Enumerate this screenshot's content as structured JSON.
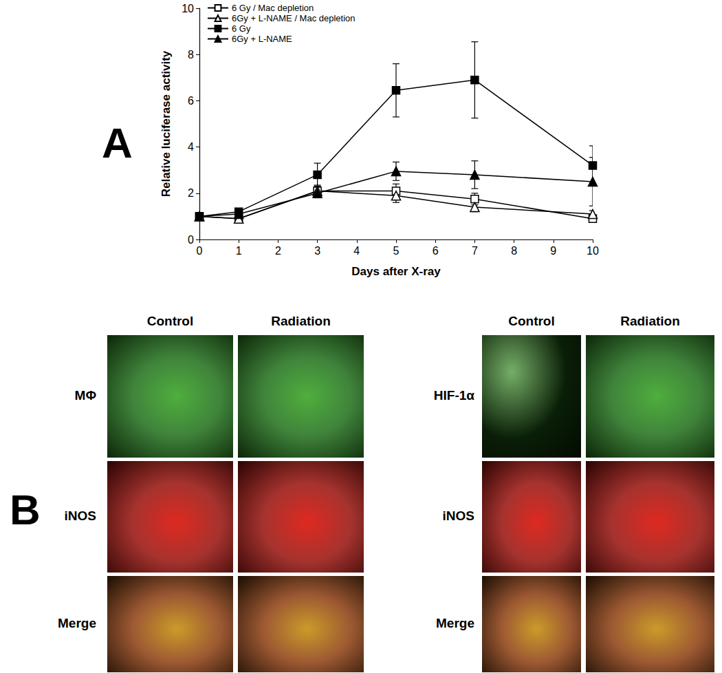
{
  "chart_data": {
    "type": "line",
    "x_label": "Days after X-ray",
    "y_label": "Relative luciferase activity",
    "x": [
      0,
      1,
      3,
      5,
      7,
      10
    ],
    "xlim": [
      0,
      10
    ],
    "xticks": [
      0,
      1,
      2,
      3,
      4,
      5,
      6,
      7,
      8,
      9,
      10
    ],
    "ylim": [
      0,
      10
    ],
    "yticks": [
      0,
      2,
      4,
      6,
      8,
      10
    ],
    "grid": false,
    "legend": "upper left",
    "series": [
      {
        "name": "6 Gy / Mac depletion",
        "color": "#000000",
        "marker": "open_square",
        "values": [
          1,
          0.9,
          2.1,
          2.1,
          1.75,
          0.9
        ],
        "errors": [
          0,
          0.08,
          0.25,
          0.3,
          0.25,
          0.15
        ]
      },
      {
        "name": "6Gy + L-NAME / Mac depletion",
        "color": "#000000",
        "marker": "open_triangle",
        "values": [
          1,
          0.9,
          2.1,
          1.9,
          1.4,
          1.1
        ],
        "errors": [
          0,
          0.08,
          0.2,
          0.3,
          0.2,
          0.15
        ]
      },
      {
        "name": "6 Gy",
        "color": "#000000",
        "marker": "filled_square",
        "values": [
          1,
          1.2,
          2.8,
          6.45,
          6.9,
          3.2
        ],
        "errors": [
          0,
          0.1,
          0.5,
          1.15,
          1.65,
          0.85
        ]
      },
      {
        "name": "6Gy + L-NAME",
        "color": "#000000",
        "marker": "filled_triangle",
        "values": [
          1,
          1.1,
          2.0,
          2.95,
          2.8,
          2.5
        ],
        "errors": [
          0,
          0.08,
          0.2,
          0.4,
          0.6,
          1.05
        ]
      }
    ]
  },
  "panel_labels": [
    "A",
    "B"
  ],
  "micrographs": [
    {
      "columns": [
        "Control",
        "Radiation"
      ],
      "rows": [
        "MΦ",
        "iNOS",
        "Merge"
      ]
    },
    {
      "columns": [
        "Control",
        "Radiation"
      ],
      "rows": [
        "HIF-1α",
        "iNOS",
        "Merge"
      ]
    }
  ]
}
